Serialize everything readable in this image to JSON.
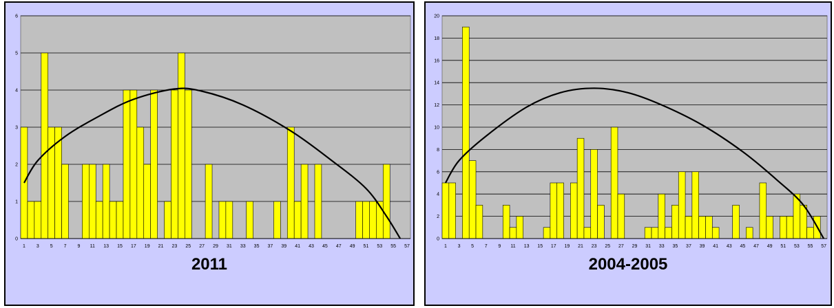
{
  "colors": {
    "bar": "#ffff00",
    "plot_bg": "#c0c0c0",
    "panel_bg": "#ccccff",
    "trend": "#000000"
  },
  "chart_data": [
    {
      "type": "bar",
      "title": "2011",
      "xlabel": "",
      "ylabel": "",
      "categories": [
        1,
        2,
        3,
        4,
        5,
        6,
        7,
        8,
        9,
        10,
        11,
        12,
        13,
        14,
        15,
        16,
        17,
        18,
        19,
        20,
        21,
        22,
        23,
        24,
        25,
        26,
        27,
        28,
        29,
        30,
        31,
        32,
        33,
        34,
        35,
        36,
        37,
        38,
        39,
        40,
        41,
        42,
        43,
        44,
        45,
        46,
        47,
        48,
        49,
        50,
        51,
        52,
        53,
        54,
        55,
        56,
        57
      ],
      "x_tick_labels": [
        "1",
        "3",
        "5",
        "7",
        "9",
        "11",
        "13",
        "15",
        "17",
        "19",
        "21",
        "23",
        "25",
        "27",
        "29",
        "31",
        "33",
        "35",
        "37",
        "39",
        "41",
        "43",
        "45",
        "47",
        "49",
        "51",
        "53",
        "55",
        "57"
      ],
      "values": [
        3,
        1,
        1,
        5,
        3,
        3,
        2,
        0,
        0,
        2,
        2,
        1,
        2,
        1,
        1,
        4,
        4,
        3,
        2,
        4,
        0,
        1,
        4,
        5,
        4,
        0,
        0,
        2,
        0,
        1,
        1,
        0,
        0,
        1,
        0,
        0,
        0,
        1,
        0,
        3,
        1,
        2,
        0,
        2,
        0,
        0,
        0,
        0,
        0,
        1,
        1,
        1,
        1,
        2,
        0,
        0,
        0
      ],
      "ylim": [
        0,
        6
      ],
      "y_ticks": [
        0,
        1,
        2,
        3,
        4,
        5,
        6
      ],
      "grid": true,
      "trendline": {
        "type": "polynomial",
        "points": [
          [
            1,
            1.5
          ],
          [
            3,
            2.1
          ],
          [
            7,
            2.75
          ],
          [
            12,
            3.3
          ],
          [
            17,
            3.75
          ],
          [
            23,
            4.03
          ],
          [
            27,
            3.97
          ],
          [
            33,
            3.6
          ],
          [
            40,
            2.9
          ],
          [
            46,
            2.1
          ],
          [
            51,
            1.35
          ],
          [
            54,
            0.6
          ],
          [
            56,
            0.0
          ]
        ]
      }
    },
    {
      "type": "bar",
      "title": "2004-2005",
      "xlabel": "",
      "ylabel": "",
      "categories": [
        1,
        2,
        3,
        4,
        5,
        6,
        7,
        8,
        9,
        10,
        11,
        12,
        13,
        14,
        15,
        16,
        17,
        18,
        19,
        20,
        21,
        22,
        23,
        24,
        25,
        26,
        27,
        28,
        29,
        30,
        31,
        32,
        33,
        34,
        35,
        36,
        37,
        38,
        39,
        40,
        41,
        42,
        43,
        44,
        45,
        46,
        47,
        48,
        49,
        50,
        51,
        52,
        53,
        54,
        55,
        56,
        57
      ],
      "x_tick_labels": [
        "1",
        "3",
        "5",
        "7",
        "9",
        "11",
        "13",
        "15",
        "17",
        "19",
        "21",
        "23",
        "25",
        "27",
        "29",
        "31",
        "33",
        "35",
        "37",
        "39",
        "41",
        "43",
        "45",
        "47",
        "49",
        "51",
        "53",
        "55",
        "57"
      ],
      "values": [
        5,
        5,
        0,
        19,
        7,
        3,
        0,
        0,
        0,
        3,
        1,
        2,
        0,
        0,
        0,
        1,
        5,
        5,
        0,
        5,
        9,
        1,
        8,
        3,
        0,
        10,
        4,
        0,
        0,
        0,
        1,
        1,
        4,
        1,
        3,
        6,
        2,
        6,
        2,
        2,
        1,
        0,
        0,
        3,
        0,
        1,
        0,
        5,
        2,
        0,
        2,
        2,
        4,
        3,
        1,
        2,
        0
      ],
      "ylim": [
        0,
        20
      ],
      "y_ticks": [
        0,
        2,
        4,
        6,
        8,
        10,
        12,
        14,
        16,
        18,
        20
      ],
      "grid": true,
      "trendline": {
        "type": "polynomial",
        "points": [
          [
            1,
            5
          ],
          [
            3,
            7
          ],
          [
            7,
            9.2
          ],
          [
            13,
            11.8
          ],
          [
            18,
            13.1
          ],
          [
            23,
            13.5
          ],
          [
            28,
            13.1
          ],
          [
            33,
            12.0
          ],
          [
            39,
            10.2
          ],
          [
            45,
            7.8
          ],
          [
            50,
            5.3
          ],
          [
            54,
            3.0
          ],
          [
            57,
            0.0
          ]
        ]
      }
    }
  ]
}
